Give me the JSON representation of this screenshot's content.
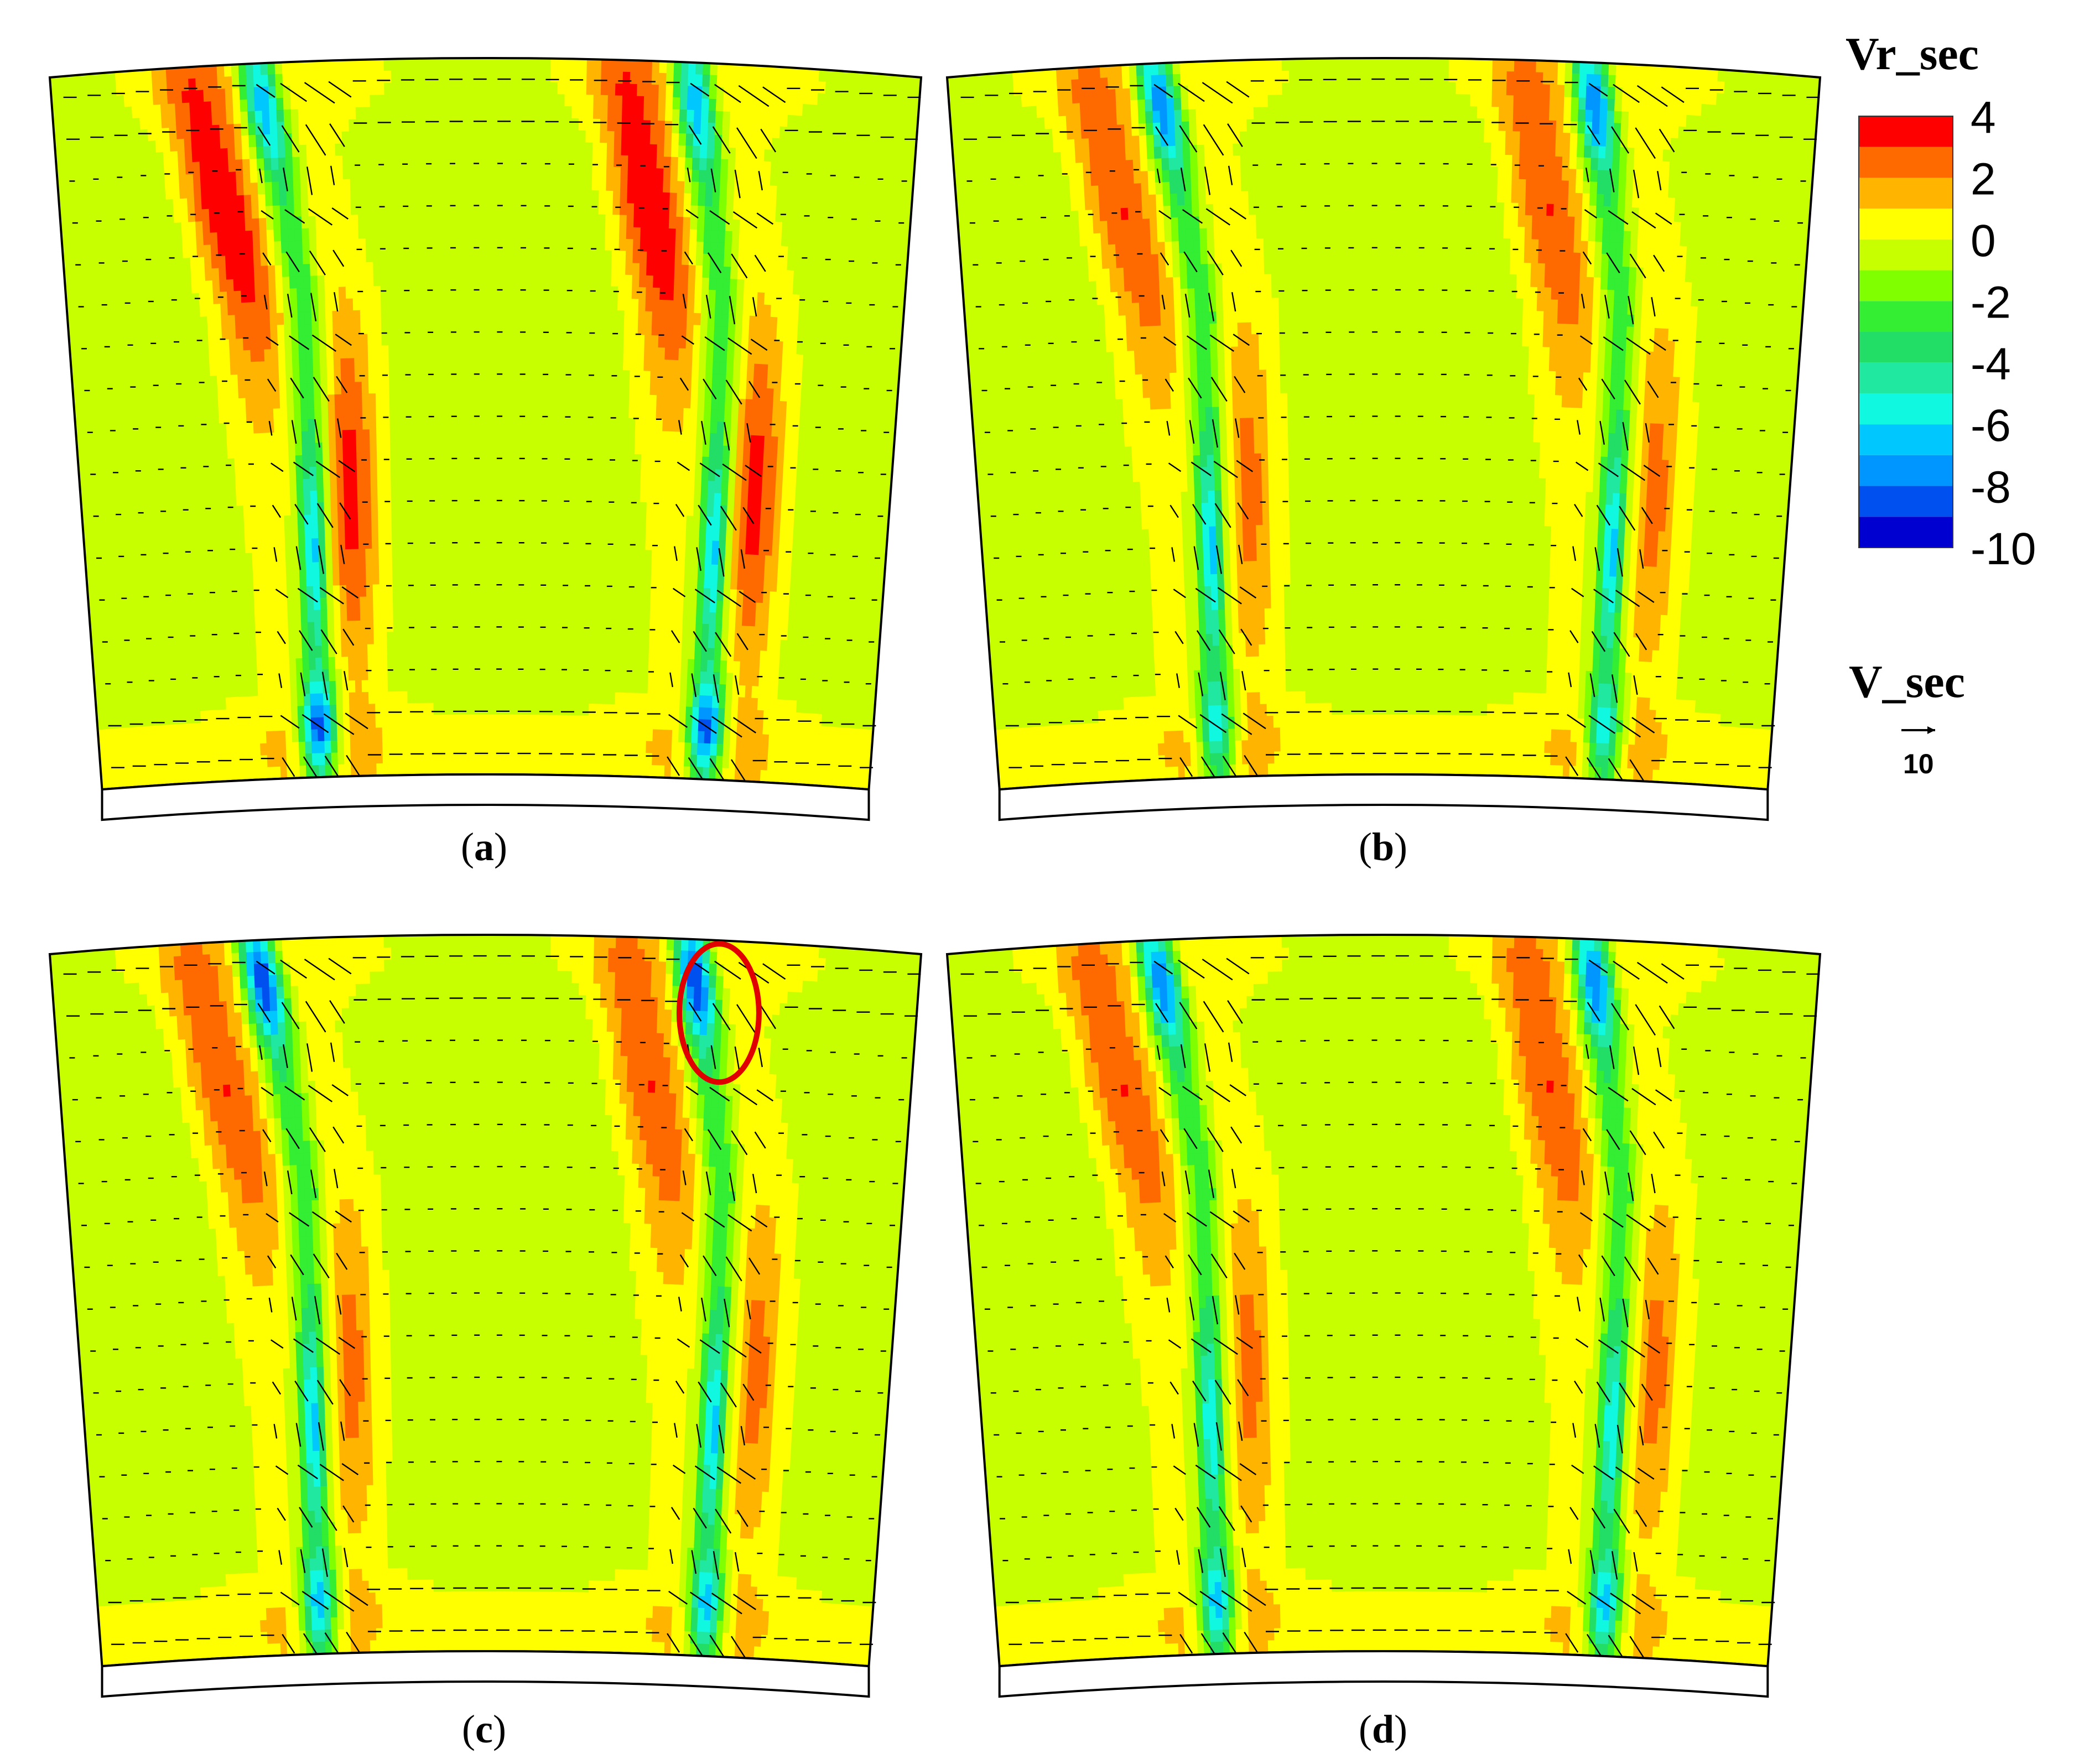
{
  "chart_data": {
    "type": "heatmap",
    "description_free": true,
    "colorbar": {
      "title": "Vr_sec",
      "range": [
        -10,
        4
      ],
      "ticks": [
        "4",
        "2",
        "0",
        "-2",
        "-4",
        "-6",
        "-8",
        "-10"
      ],
      "levels": [
        {
          "from": 3,
          "to": 4,
          "color": "#ff0000"
        },
        {
          "from": 2,
          "to": 3,
          "color": "#ff6a00"
        },
        {
          "from": 1,
          "to": 2,
          "color": "#ffb400"
        },
        {
          "from": 0,
          "to": 1,
          "color": "#ffff00"
        },
        {
          "from": -1,
          "to": 0,
          "color": "#c8ff00"
        },
        {
          "from": -2,
          "to": -1,
          "color": "#7fff00"
        },
        {
          "from": -3,
          "to": -2,
          "color": "#33ee33"
        },
        {
          "from": -4,
          "to": -3,
          "color": "#22dd66"
        },
        {
          "from": -5,
          "to": -4,
          "color": "#20e8a0"
        },
        {
          "from": -6,
          "to": -5,
          "color": "#10f8e0"
        },
        {
          "from": -7,
          "to": -6,
          "color": "#00c8ff"
        },
        {
          "from": -8,
          "to": -7,
          "color": "#0096ff"
        },
        {
          "from": -9,
          "to": -8,
          "color": "#0050f0"
        },
        {
          "from": -10,
          "to": -9,
          "color": "#0000d0"
        }
      ]
    },
    "vector_legend": {
      "title": "V_sec",
      "reference_value": "10"
    },
    "panels": [
      {
        "label": "a",
        "blade_peak_positive": 4,
        "blade_min_negative": -10,
        "hub_core_min": -10,
        "tip_core_min": -8
      },
      {
        "label": "b",
        "blade_peak_positive": 3,
        "blade_min_negative": -10,
        "hub_core_min": -7,
        "tip_core_min": -9
      },
      {
        "label": "c",
        "blade_peak_positive": 3,
        "blade_min_negative": -10,
        "hub_core_min": -8,
        "tip_core_min": -10,
        "highlight": "ellipse at tip vortex of second passage"
      },
      {
        "label": "d",
        "blade_peak_positive": 3,
        "blade_min_negative": -9,
        "hub_core_min": -8,
        "tip_core_min": -9
      }
    ]
  },
  "colors": {
    "outline": "#000000",
    "highlight": "#e00000",
    "vector": "#000000"
  }
}
